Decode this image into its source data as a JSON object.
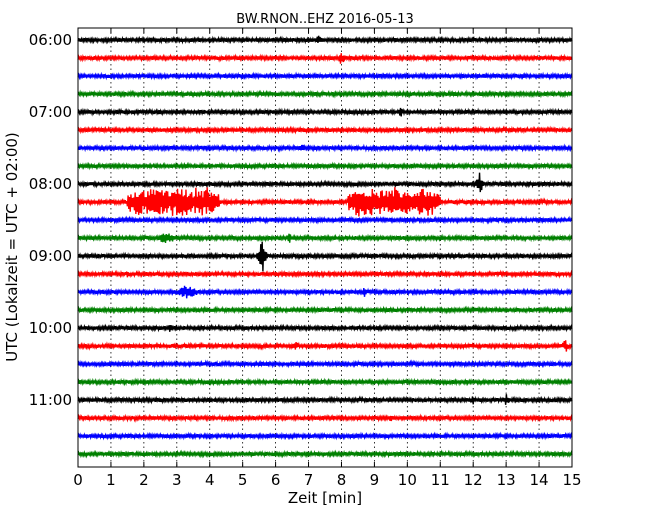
{
  "chart_data": {
    "type": "line",
    "chart_kind": "helicorder",
    "title": "BW.RNON..EHZ 2016-05-13",
    "xlabel": "Zeit  [min]",
    "ylabel": "UTC (Lokalzeit = UTC + 02:00)",
    "xlim": [
      0,
      15
    ],
    "x_ticks": [
      "0",
      "1",
      "2",
      "3",
      "4",
      "5",
      "6",
      "7",
      "8",
      "9",
      "10",
      "11",
      "12",
      "13",
      "14",
      "15"
    ],
    "y_ticks": [
      "06:00",
      "07:00",
      "08:00",
      "09:00",
      "10:00",
      "11:00"
    ],
    "grid": {
      "x": true,
      "y": false
    },
    "trace_colors": [
      "#000000",
      "#ff0000",
      "#0000ff",
      "#008000"
    ],
    "traces": [
      {
        "start": "06:00",
        "color": "#000000",
        "events": [
          {
            "x": 7.3,
            "amp": 0.5
          }
        ]
      },
      {
        "start": "06:15",
        "color": "#ff0000",
        "events": [
          {
            "x": 8.0,
            "amp": 0.6
          }
        ]
      },
      {
        "start": "06:30",
        "color": "#0000ff",
        "events": []
      },
      {
        "start": "06:45",
        "color": "#008000",
        "events": []
      },
      {
        "start": "07:00",
        "color": "#000000",
        "events": [
          {
            "x": 9.8,
            "amp": 0.4
          }
        ]
      },
      {
        "start": "07:15",
        "color": "#ff0000",
        "events": []
      },
      {
        "start": "07:30",
        "color": "#0000ff",
        "events": [
          {
            "x": 6.8,
            "amp": 0.35
          }
        ]
      },
      {
        "start": "07:45",
        "color": "#008000",
        "events": []
      },
      {
        "start": "08:00",
        "color": "#000000",
        "events": [
          {
            "x": 12.2,
            "amp": 1.0
          }
        ]
      },
      {
        "start": "08:15",
        "color": "#ff0000",
        "events": [
          {
            "x": 1.5,
            "x_end": 4.3,
            "amp": 1.1
          },
          {
            "x": 8.2,
            "x_end": 11.0,
            "amp": 1.1
          }
        ]
      },
      {
        "start": "08:30",
        "color": "#0000ff",
        "events": []
      },
      {
        "start": "08:45",
        "color": "#008000",
        "events": [
          {
            "x": 2.5,
            "x_end": 2.9,
            "amp": 0.6
          },
          {
            "x": 6.4,
            "amp": 0.5
          }
        ]
      },
      {
        "start": "09:00",
        "color": "#000000",
        "events": [
          {
            "x": 5.6,
            "amp": 1.6
          }
        ]
      },
      {
        "start": "09:15",
        "color": "#ff0000",
        "events": [
          {
            "x": 1.5,
            "amp": 0.3
          }
        ]
      },
      {
        "start": "09:30",
        "color": "#0000ff",
        "events": [
          {
            "x": 3.0,
            "x_end": 3.6,
            "amp": 0.5
          },
          {
            "x": 8.7,
            "amp": 0.4
          }
        ]
      },
      {
        "start": "09:45",
        "color": "#008000",
        "events": []
      },
      {
        "start": "10:00",
        "color": "#000000",
        "events": [
          {
            "x": 2.8,
            "amp": 0.35
          }
        ]
      },
      {
        "start": "10:15",
        "color": "#ff0000",
        "events": [
          {
            "x": 6.6,
            "amp": 0.5
          },
          {
            "x": 14.8,
            "amp": 0.6
          }
        ]
      },
      {
        "start": "10:30",
        "color": "#0000ff",
        "events": []
      },
      {
        "start": "10:45",
        "color": "#008000",
        "events": []
      },
      {
        "start": "11:00",
        "color": "#000000",
        "events": [
          {
            "x": 12.0,
            "amp": 0.4
          },
          {
            "x": 13.0,
            "amp": 0.5
          }
        ]
      },
      {
        "start": "11:15",
        "color": "#ff0000",
        "events": [
          {
            "x": 9.5,
            "amp": 0.3
          }
        ]
      },
      {
        "start": "11:30",
        "color": "#0000ff",
        "events": []
      },
      {
        "start": "11:45",
        "color": "#008000",
        "events": []
      }
    ]
  }
}
